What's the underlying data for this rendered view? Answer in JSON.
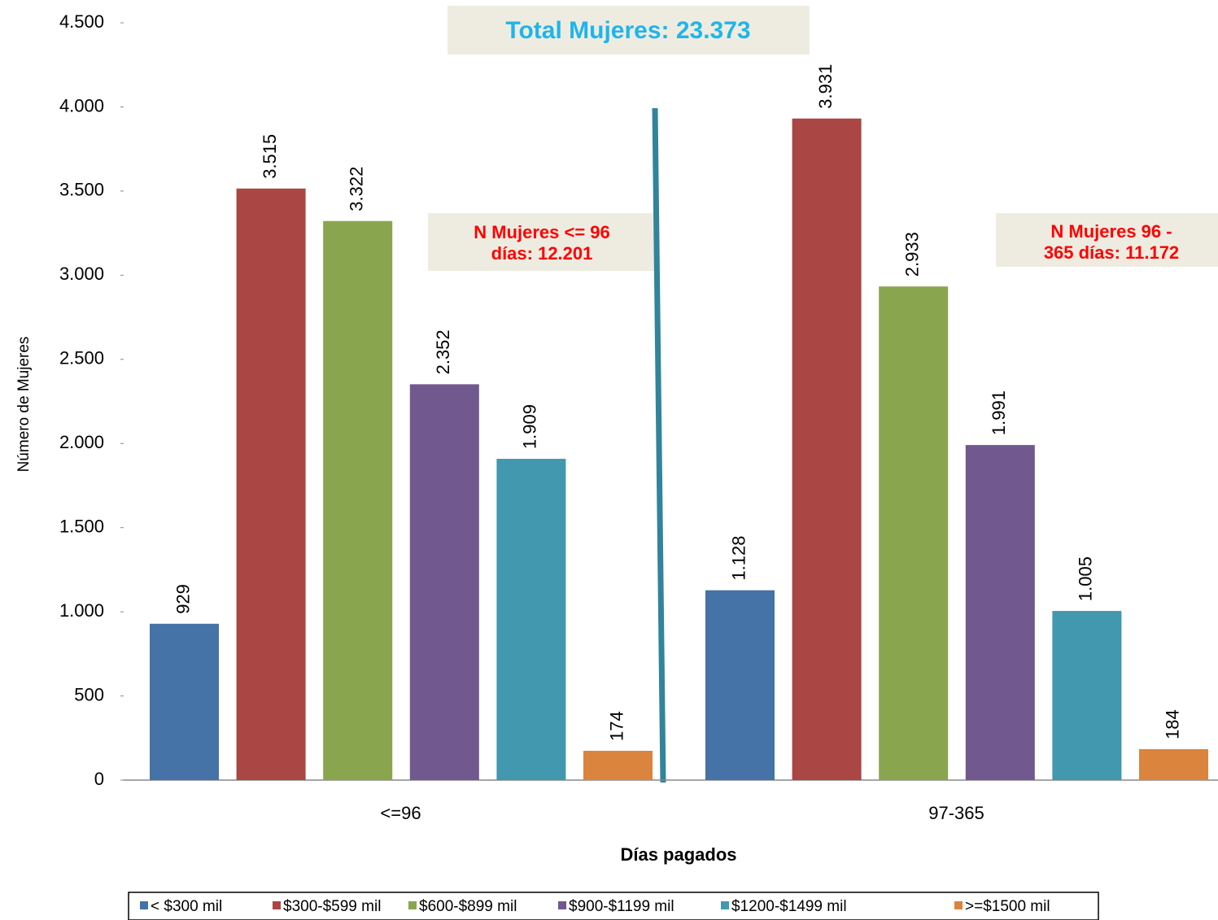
{
  "chart_data": {
    "type": "bar",
    "x_label": "Días pagados",
    "y_label": "Número de Mujeres",
    "categories": [
      "<=96",
      "97-365"
    ],
    "series": [
      {
        "name": "< $300  mil",
        "color": "#4572a7",
        "values": [
          929,
          1128
        ],
        "value_labels": [
          "929",
          "1.128"
        ]
      },
      {
        "name": "$300-$599  mil",
        "color": "#aa4643",
        "values": [
          3515,
          3931
        ],
        "value_labels": [
          "3.515",
          "3.931"
        ]
      },
      {
        "name": "$600-$899  mil",
        "color": "#89a54e",
        "values": [
          3322,
          2933
        ],
        "value_labels": [
          "3.322",
          "2.933"
        ]
      },
      {
        "name": "$900-$1199  mil",
        "color": "#71588f",
        "values": [
          2352,
          1991
        ],
        "value_labels": [
          "2.352",
          "1.991"
        ]
      },
      {
        "name": "$1200-$1499  mil",
        "color": "#4198af",
        "values": [
          1909,
          1005
        ],
        "value_labels": [
          "1.909",
          "1.005"
        ]
      },
      {
        "name": ">=$1500 mil",
        "color": "#db843d",
        "values": [
          174,
          184
        ],
        "value_labels": [
          "174",
          "184"
        ]
      }
    ],
    "ylim": [
      0,
      4500
    ],
    "yticks": [
      0,
      500,
      {
        "value": 1000,
        "label": "1.000"
      },
      {
        "value": 1500,
        "label": "1.500"
      },
      {
        "value": 2000,
        "label": "2.000"
      },
      {
        "value": 2500,
        "label": "2.500"
      },
      {
        "value": 3000,
        "label": "3.000"
      },
      {
        "value": 3500,
        "label": "3.500"
      },
      {
        "value": 4000,
        "label": "4.000"
      },
      {
        "value": 4500,
        "label": "4.500"
      }
    ],
    "grid": false,
    "legend": "bottom",
    "annotations": [
      {
        "lines": [
          "Total Mujeres: 23.373"
        ]
      },
      {
        "lines": [
          "N  Mujeres <= 96",
          "días: 12.201"
        ]
      },
      {
        "lines": [
          "N  Mujeres  96 -",
          "365 días: 11.172"
        ]
      }
    ]
  }
}
